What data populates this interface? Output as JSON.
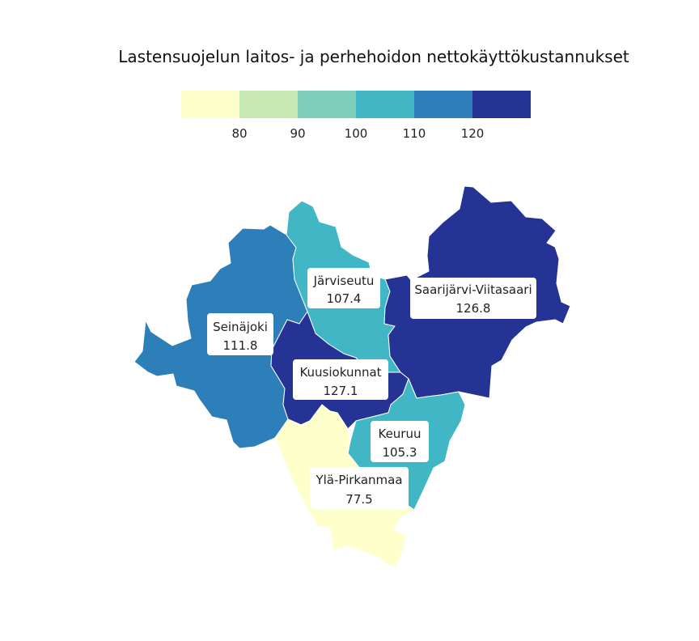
{
  "title": "Lastensuojelun laitos- ja perhehoidon nettokäyttökustannukset",
  "legend": {
    "colors": [
      "#ffffcc",
      "#c7e9b4",
      "#7fcdbb",
      "#41b6c4",
      "#2c7fb8",
      "#253494"
    ],
    "ticks": [
      "80",
      "90",
      "100",
      "110",
      "120"
    ]
  },
  "regions": [
    {
      "name": "Seinäjoki",
      "value": "111.8",
      "color": "#2c7fb8"
    },
    {
      "name": "Järviseutu",
      "value": "107.4",
      "color": "#41b6c4"
    },
    {
      "name": "Saarijärvi-Viitasaari",
      "value": "126.8",
      "color": "#253494"
    },
    {
      "name": "Kuusiokunnat",
      "value": "127.1",
      "color": "#253494"
    },
    {
      "name": "Keuruu",
      "value": "105.3",
      "color": "#41b6c4"
    },
    {
      "name": "Ylä-Pirkanmaa",
      "value": "77.5",
      "color": "#ffffcc"
    }
  ]
}
